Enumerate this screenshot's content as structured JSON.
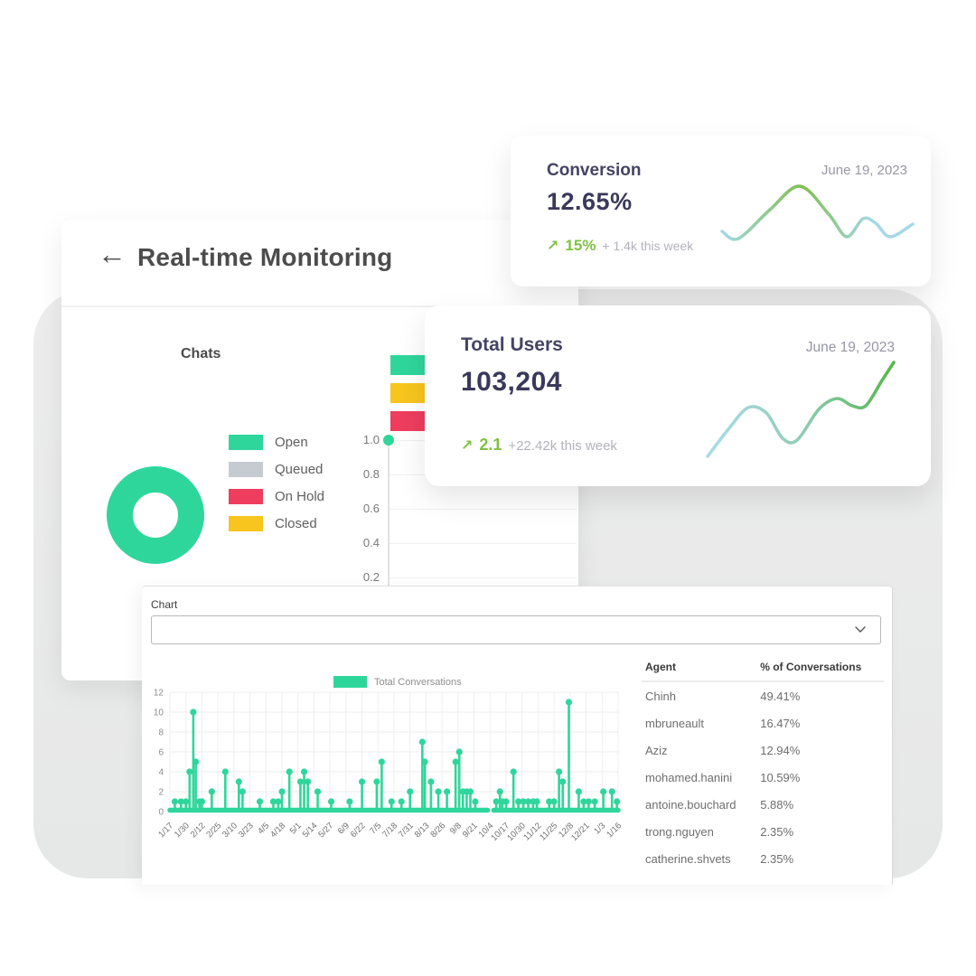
{
  "monitor_panel": {
    "back_arrow": "←",
    "title": "Real-time Monitoring",
    "chats": {
      "title": "Chats",
      "legend": [
        {
          "label": "Open",
          "color": "#2fd69b"
        },
        {
          "label": "Queued",
          "color": "#c6cbd1"
        },
        {
          "label": "On Hold",
          "color": "#ee3d5e"
        },
        {
          "label": "Closed",
          "color": "#f7c51d"
        }
      ]
    }
  },
  "conversion_card": {
    "title": "Conversion",
    "date": "June 19, 2023",
    "value": "12.65%",
    "arrow": "↗",
    "delta": "15%",
    "delta_note": "+ 1.4k this week"
  },
  "total_users_card": {
    "title": "Total Users",
    "date": "June 19, 2023",
    "value": "103,204",
    "arrow": "↗",
    "delta": "2.1",
    "delta_note": "+22.42k this week"
  },
  "chart_panel": {
    "label": "Chart",
    "select_value": "",
    "table": {
      "headers": [
        "Agent",
        "% of Conversations"
      ],
      "rows": [
        [
          "Chinh",
          "49.41%"
        ],
        [
          "mbruneault",
          "16.47%"
        ],
        [
          "Aziz",
          "12.94%"
        ],
        [
          "mohamed.hanini",
          "10.59%"
        ],
        [
          "antoine.bouchard",
          "5.88%"
        ],
        [
          "trong.nguyen",
          "2.35%"
        ],
        [
          "catherine.shvets",
          "2.35%"
        ]
      ]
    }
  },
  "chart_data": [
    {
      "id": "total_conversations_stem",
      "type": "line",
      "legend": [
        "Total Conversations"
      ],
      "legend_position": "top-center",
      "color": "#2fd69b",
      "grid": true,
      "ylim": [
        0,
        12
      ],
      "yticks": [
        0,
        2,
        4,
        6,
        8,
        10,
        12
      ],
      "x_tick_labels": [
        "1/17",
        "1/30",
        "2/12",
        "2/25",
        "3/10",
        "3/23",
        "4/5",
        "4/18",
        "5/1",
        "5/14",
        "5/27",
        "6/9",
        "6/22",
        "7/5",
        "7/18",
        "7/31",
        "8/13",
        "8/26",
        "9/8",
        "9/21",
        "10/4",
        "10/17",
        "10/30",
        "11/12",
        "11/25",
        "12/8",
        "12/21",
        "1/3",
        "1/16"
      ],
      "days_total": 365,
      "baseline_value": 0,
      "gap_days": [
        258,
        263
      ],
      "spikes": [
        [
          4,
          1
        ],
        [
          9,
          1
        ],
        [
          13,
          1
        ],
        [
          16,
          4
        ],
        [
          19,
          10
        ],
        [
          21,
          5
        ],
        [
          24,
          1
        ],
        [
          26,
          1
        ],
        [
          34,
          2
        ],
        [
          45,
          4
        ],
        [
          56,
          3
        ],
        [
          59,
          2
        ],
        [
          73,
          1
        ],
        [
          84,
          1
        ],
        [
          88,
          1
        ],
        [
          91,
          2
        ],
        [
          97,
          4
        ],
        [
          106,
          3
        ],
        [
          109,
          4
        ],
        [
          112,
          3
        ],
        [
          120,
          2
        ],
        [
          131,
          1
        ],
        [
          146,
          1
        ],
        [
          156,
          3
        ],
        [
          168,
          3
        ],
        [
          172,
          5
        ],
        [
          180,
          1
        ],
        [
          188,
          1
        ],
        [
          195,
          2
        ],
        [
          205,
          7
        ],
        [
          207,
          5
        ],
        [
          212,
          3
        ],
        [
          218,
          2
        ],
        [
          225,
          2
        ],
        [
          232,
          5
        ],
        [
          235,
          6
        ],
        [
          238,
          2
        ],
        [
          241,
          2
        ],
        [
          244,
          2
        ],
        [
          248,
          1
        ],
        [
          265,
          1
        ],
        [
          268,
          2
        ],
        [
          270,
          1
        ],
        [
          273,
          1
        ],
        [
          279,
          4
        ],
        [
          283,
          1
        ],
        [
          287,
          1
        ],
        [
          291,
          1
        ],
        [
          295,
          1
        ],
        [
          298,
          1
        ],
        [
          308,
          1
        ],
        [
          312,
          1
        ],
        [
          316,
          4
        ],
        [
          319,
          3
        ],
        [
          324,
          11
        ],
        [
          332,
          2
        ],
        [
          336,
          1
        ],
        [
          340,
          1
        ],
        [
          345,
          1
        ],
        [
          352,
          2
        ],
        [
          359,
          2
        ],
        [
          363,
          1
        ]
      ]
    },
    {
      "id": "chats_donut",
      "type": "pie",
      "title": "Chats",
      "categories": [
        "Open",
        "Queued",
        "On Hold",
        "Closed"
      ],
      "values": [
        100,
        0,
        0,
        0
      ],
      "colors": [
        "#2fd69b",
        "#c6cbd1",
        "#ee3d5e",
        "#f7c51d"
      ],
      "legend_position": "right"
    },
    {
      "id": "mini_bar_fragment",
      "type": "bar",
      "bar_colors": [
        "#2fd69b",
        "#f7c51d",
        "#ee3d5e"
      ],
      "yticks": [
        "1.0",
        "0.8",
        "0.6",
        "0.4",
        "0.2"
      ],
      "marker": {
        "value": "1.0",
        "color": "#2fd69b"
      }
    },
    {
      "id": "conversion_sparkline",
      "type": "line",
      "points": [
        [
          2,
          64
        ],
        [
          20,
          72
        ],
        [
          55,
          40
        ],
        [
          88,
          14
        ],
        [
          120,
          45
        ],
        [
          140,
          70
        ],
        [
          158,
          50
        ],
        [
          172,
          55
        ],
        [
          188,
          70
        ],
        [
          213,
          56
        ]
      ],
      "gradient": [
        {
          "o": 0,
          "c": "#a6d8e6"
        },
        {
          "o": 0.42,
          "c": "#7fbe4d"
        },
        {
          "o": 0.78,
          "c": "#a6d8e6"
        }
      ]
    },
    {
      "id": "total_users_sparkline",
      "type": "line",
      "points": [
        [
          5,
          112
        ],
        [
          28,
          82
        ],
        [
          50,
          58
        ],
        [
          70,
          64
        ],
        [
          88,
          92
        ],
        [
          104,
          94
        ],
        [
          128,
          60
        ],
        [
          148,
          48
        ],
        [
          165,
          56
        ],
        [
          180,
          56
        ],
        [
          198,
          28
        ],
        [
          211,
          8
        ]
      ],
      "gradient": [
        {
          "o": 0,
          "c": "#a8dce8"
        },
        {
          "o": 0.5,
          "c": "#8fccb4"
        },
        {
          "o": 1,
          "c": "#55b74a"
        }
      ]
    }
  ]
}
